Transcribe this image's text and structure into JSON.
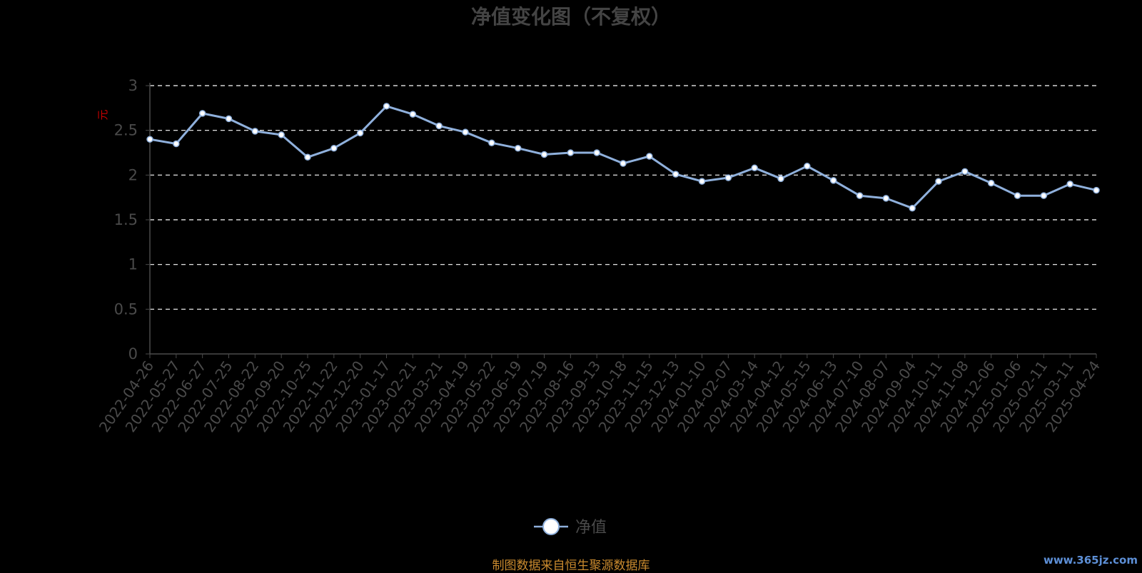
{
  "chart_data": {
    "type": "line",
    "title": "净值变化图（不复权）",
    "ylabel": "元",
    "ylim": [
      0,
      3
    ],
    "yticks": [
      "0",
      "0.5",
      "1",
      "1.5",
      "2",
      "2.5",
      "3"
    ],
    "grid": true,
    "legend_position": "bottom-center",
    "x": [
      "2022-04-26",
      "2022-05-27",
      "2022-06-27",
      "2022-07-25",
      "2022-08-22",
      "2022-09-20",
      "2022-10-25",
      "2022-11-22",
      "2022-12-20",
      "2023-01-17",
      "2023-02-21",
      "2023-03-21",
      "2023-04-19",
      "2023-05-22",
      "2023-06-19",
      "2023-07-19",
      "2023-08-16",
      "2023-09-13",
      "2023-10-18",
      "2023-11-15",
      "2023-12-13",
      "2024-01-10",
      "2024-02-07",
      "2024-03-14",
      "2024-04-12",
      "2024-05-15",
      "2024-06-13",
      "2024-07-10",
      "2024-08-07",
      "2024-09-04",
      "2024-10-11",
      "2024-11-08",
      "2024-12-06",
      "2025-01-06",
      "2025-02-11",
      "2025-03-11",
      "2025-04-24"
    ],
    "series": [
      {
        "name": "净值",
        "color": "#8fb0dc",
        "values": [
          2.4,
          2.35,
          2.69,
          2.63,
          2.49,
          2.45,
          2.2,
          2.3,
          2.47,
          2.77,
          2.68,
          2.55,
          2.48,
          2.36,
          2.3,
          2.23,
          2.25,
          2.25,
          2.13,
          2.21,
          2.01,
          1.93,
          1.97,
          2.08,
          1.96,
          2.1,
          1.94,
          1.77,
          1.74,
          1.63,
          1.93,
          2.04,
          1.91,
          1.77,
          1.77,
          1.9,
          1.83
        ]
      }
    ]
  },
  "colors": {
    "background": "#000000",
    "line": "#8fb0dc",
    "marker_fill": "#ffffff",
    "title": "#444444",
    "axis_text": "#4a4a4a",
    "grid": "#ffffff",
    "ylabel": "#cc0000",
    "source_note": "#c98a2e",
    "watermark": "#5d8fd6"
  },
  "source_note": "制图数据来自恒生聚源数据库",
  "watermark": "www.365jz.com"
}
